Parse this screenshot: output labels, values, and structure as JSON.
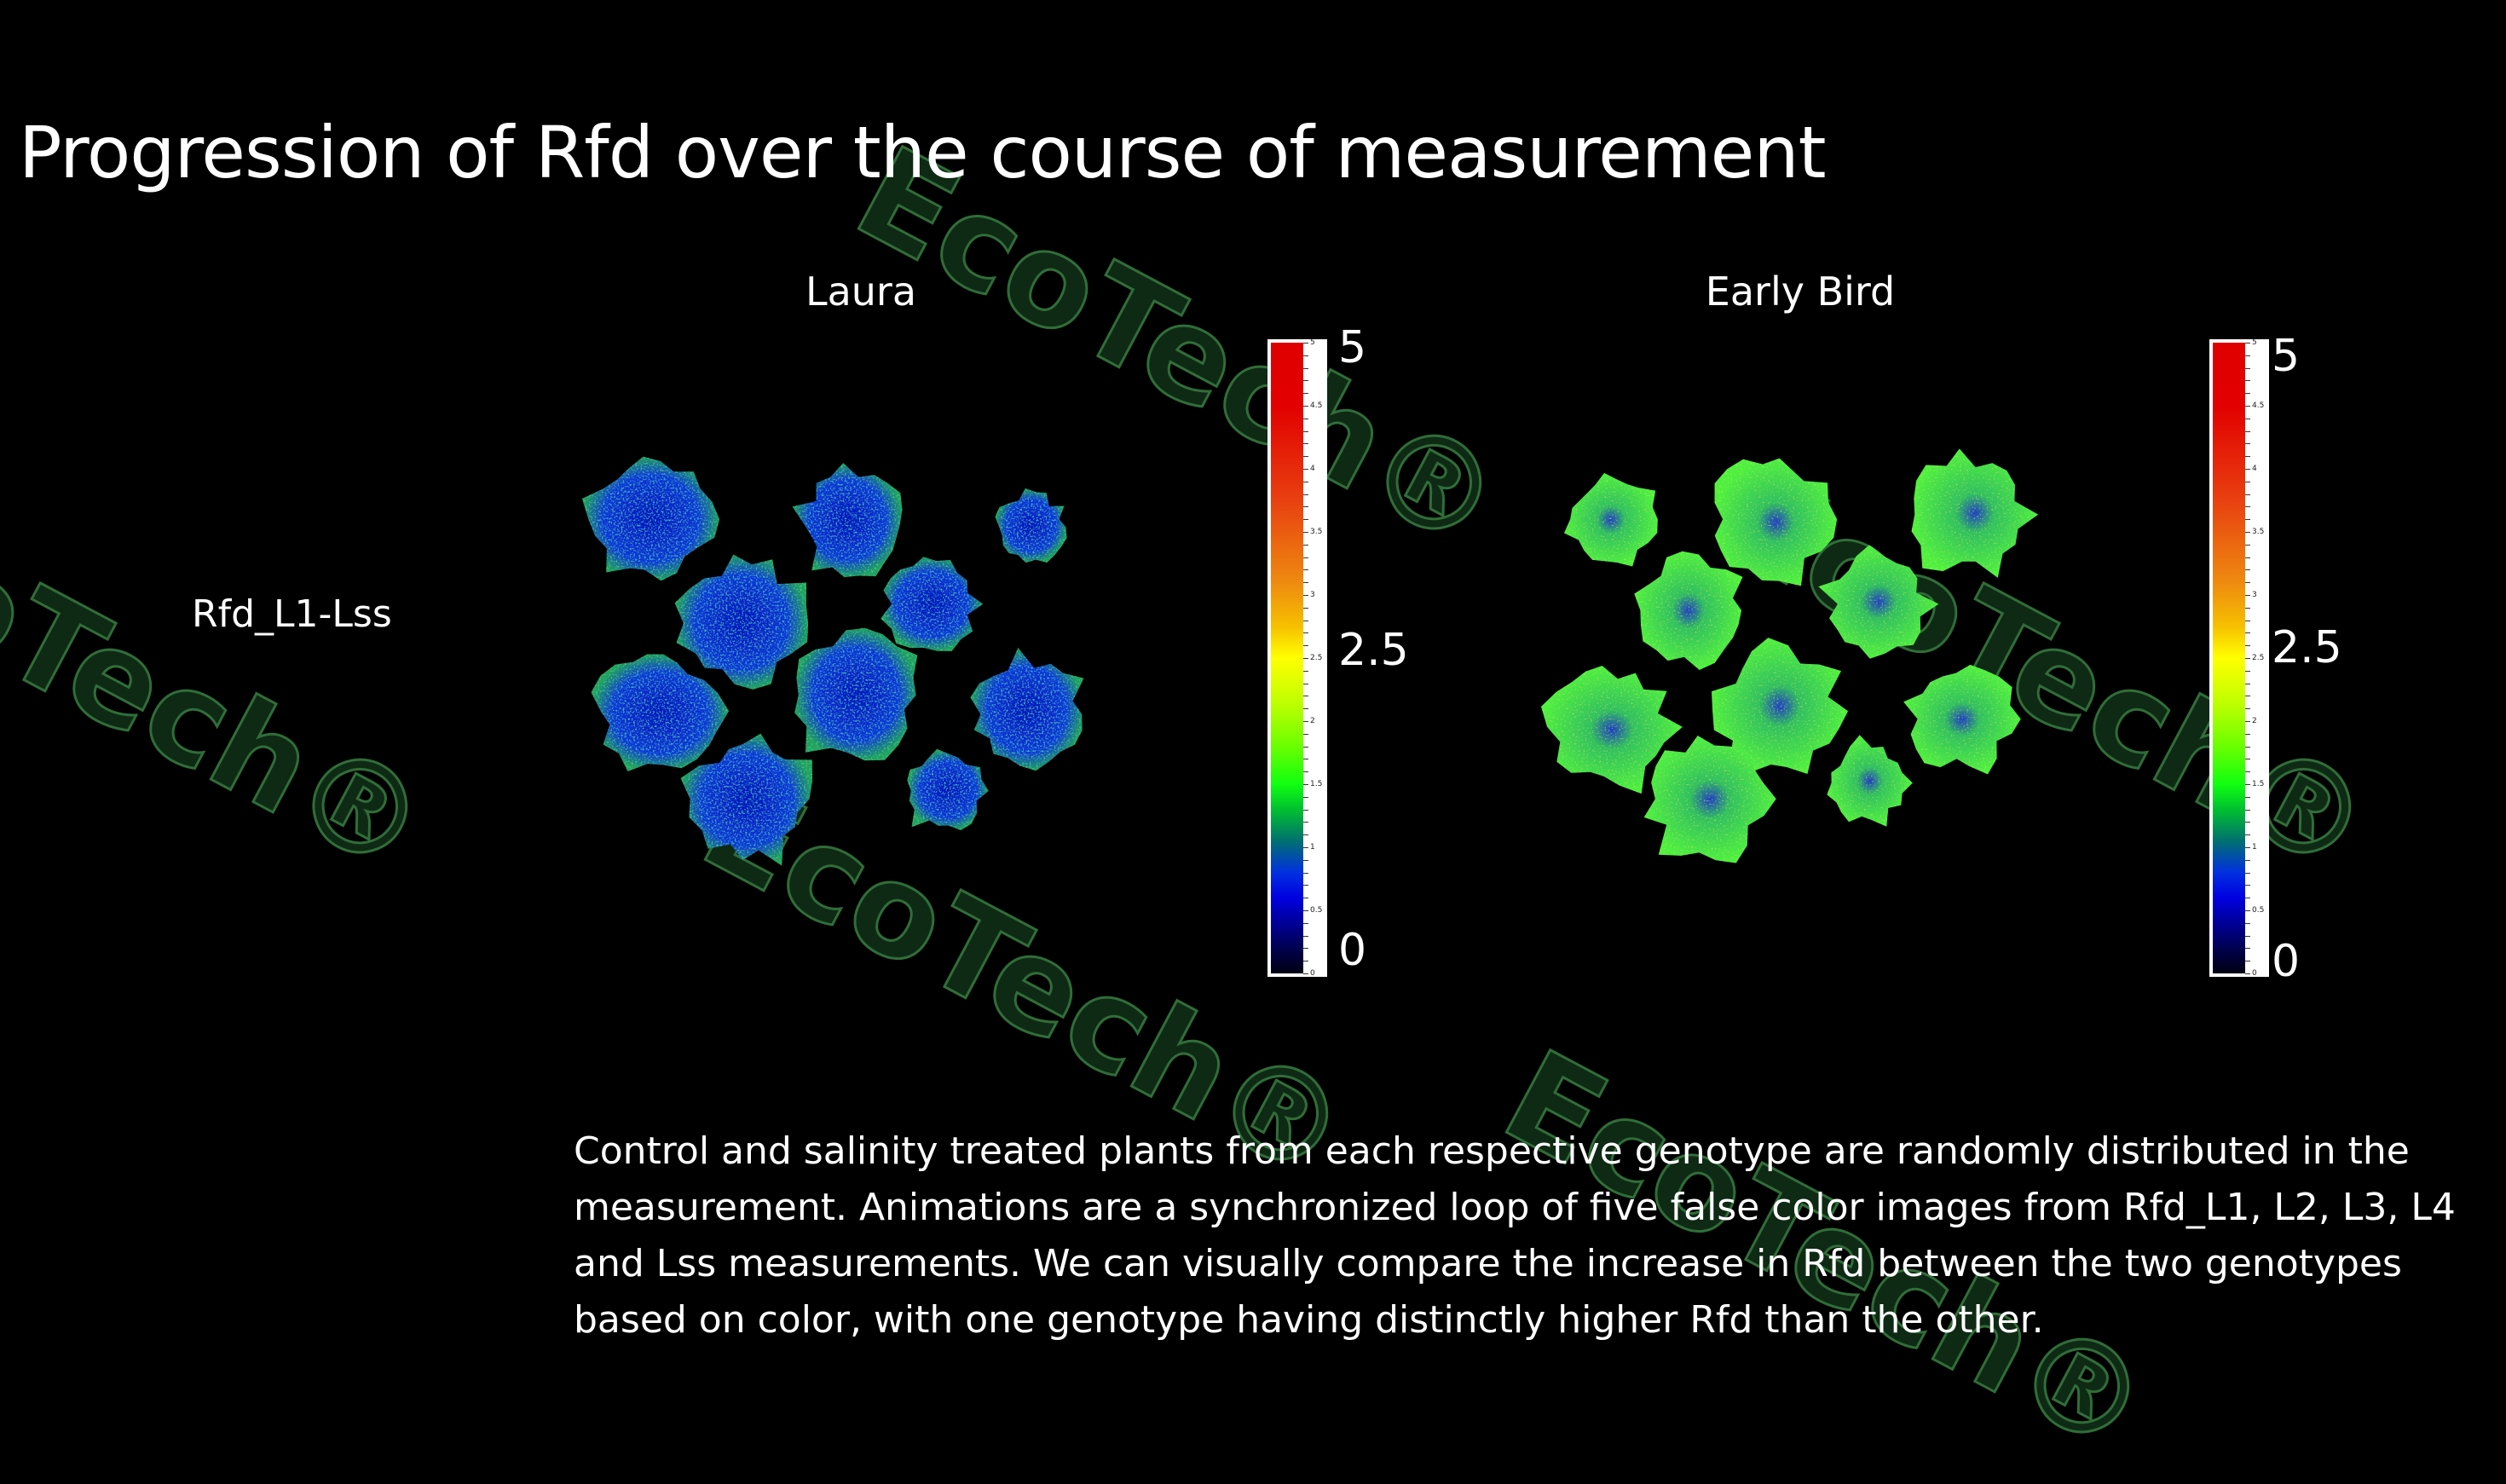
{
  "slide": {
    "title": "Progression of Rfd over the course of measurement",
    "row_label": "Rfd_L1-Lss",
    "panels": [
      {
        "genotype": "Laura",
        "colorbar": {
          "max_label": "5",
          "mid_label": "2.5",
          "min_label": "0"
        },
        "dominant_color": "#1030d0"
      },
      {
        "genotype": "Early Bird",
        "colorbar": {
          "max_label": "5",
          "mid_label": "2.5",
          "min_label": "0"
        },
        "dominant_color": "#30e030"
      }
    ],
    "colorbar_ticks": [
      "5",
      "4.5",
      "4",
      "3.5",
      "3",
      "2.5",
      "2",
      "1.5",
      "1",
      "0.5",
      "0"
    ],
    "description": "Control and salinity treated plants from each respective genotype are randomly distributed in the measurement. Animations are a synchronized loop of five false color images from Rfd_L1, L2, L3, L4 and Lss measurements. We can visually compare the increase in Rfd between the two genotypes based on color, with one genotype having distinctly higher Rfd than the other.",
    "watermark": "EcoTech®"
  }
}
